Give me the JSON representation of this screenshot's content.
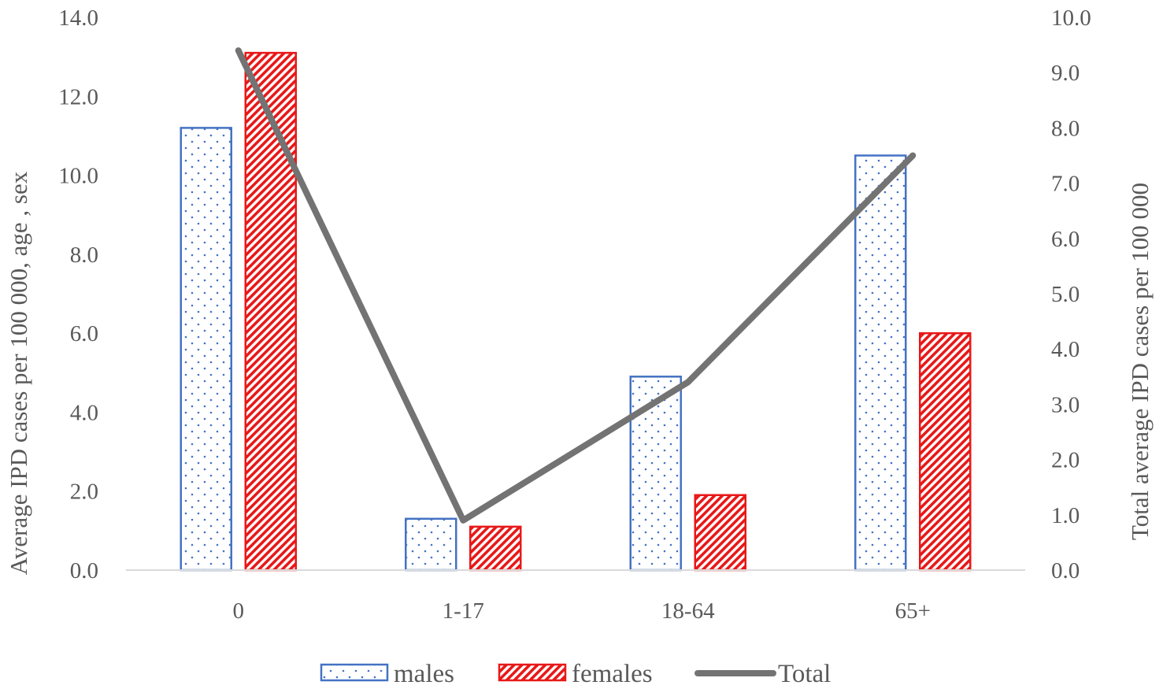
{
  "chart_data": {
    "type": "bar",
    "categories": [
      "0",
      "1-17",
      "18-64",
      "65+"
    ],
    "series": [
      {
        "name": "males",
        "type": "bar",
        "axis": "left",
        "values": [
          11.2,
          1.3,
          4.9,
          10.5
        ],
        "color": "#4472c4",
        "pattern": "dots"
      },
      {
        "name": "females",
        "type": "bar",
        "axis": "left",
        "values": [
          13.1,
          1.1,
          1.9,
          6.0
        ],
        "color": "#e81818",
        "pattern": "diagonal"
      },
      {
        "name": "Total",
        "type": "line",
        "axis": "right",
        "values": [
          9.4,
          0.9,
          3.4,
          7.5
        ],
        "color": "#737373"
      }
    ],
    "ylabel": "Average  IPD cases per 100 000, age , sex",
    "y2label": "Total average  IPD cases per 100 000",
    "ylim": [
      0,
      14
    ],
    "y2lim": [
      0,
      10
    ],
    "yticks": [
      "0.0",
      "2.0",
      "4.0",
      "6.0",
      "8.0",
      "10.0",
      "12.0",
      "14.0"
    ],
    "y2ticks": [
      "0.0",
      "1.0",
      "2.0",
      "3.0",
      "4.0",
      "5.0",
      "6.0",
      "7.0",
      "8.0",
      "9.0",
      "10.0"
    ],
    "grid": false,
    "legend_position": "bottom"
  }
}
